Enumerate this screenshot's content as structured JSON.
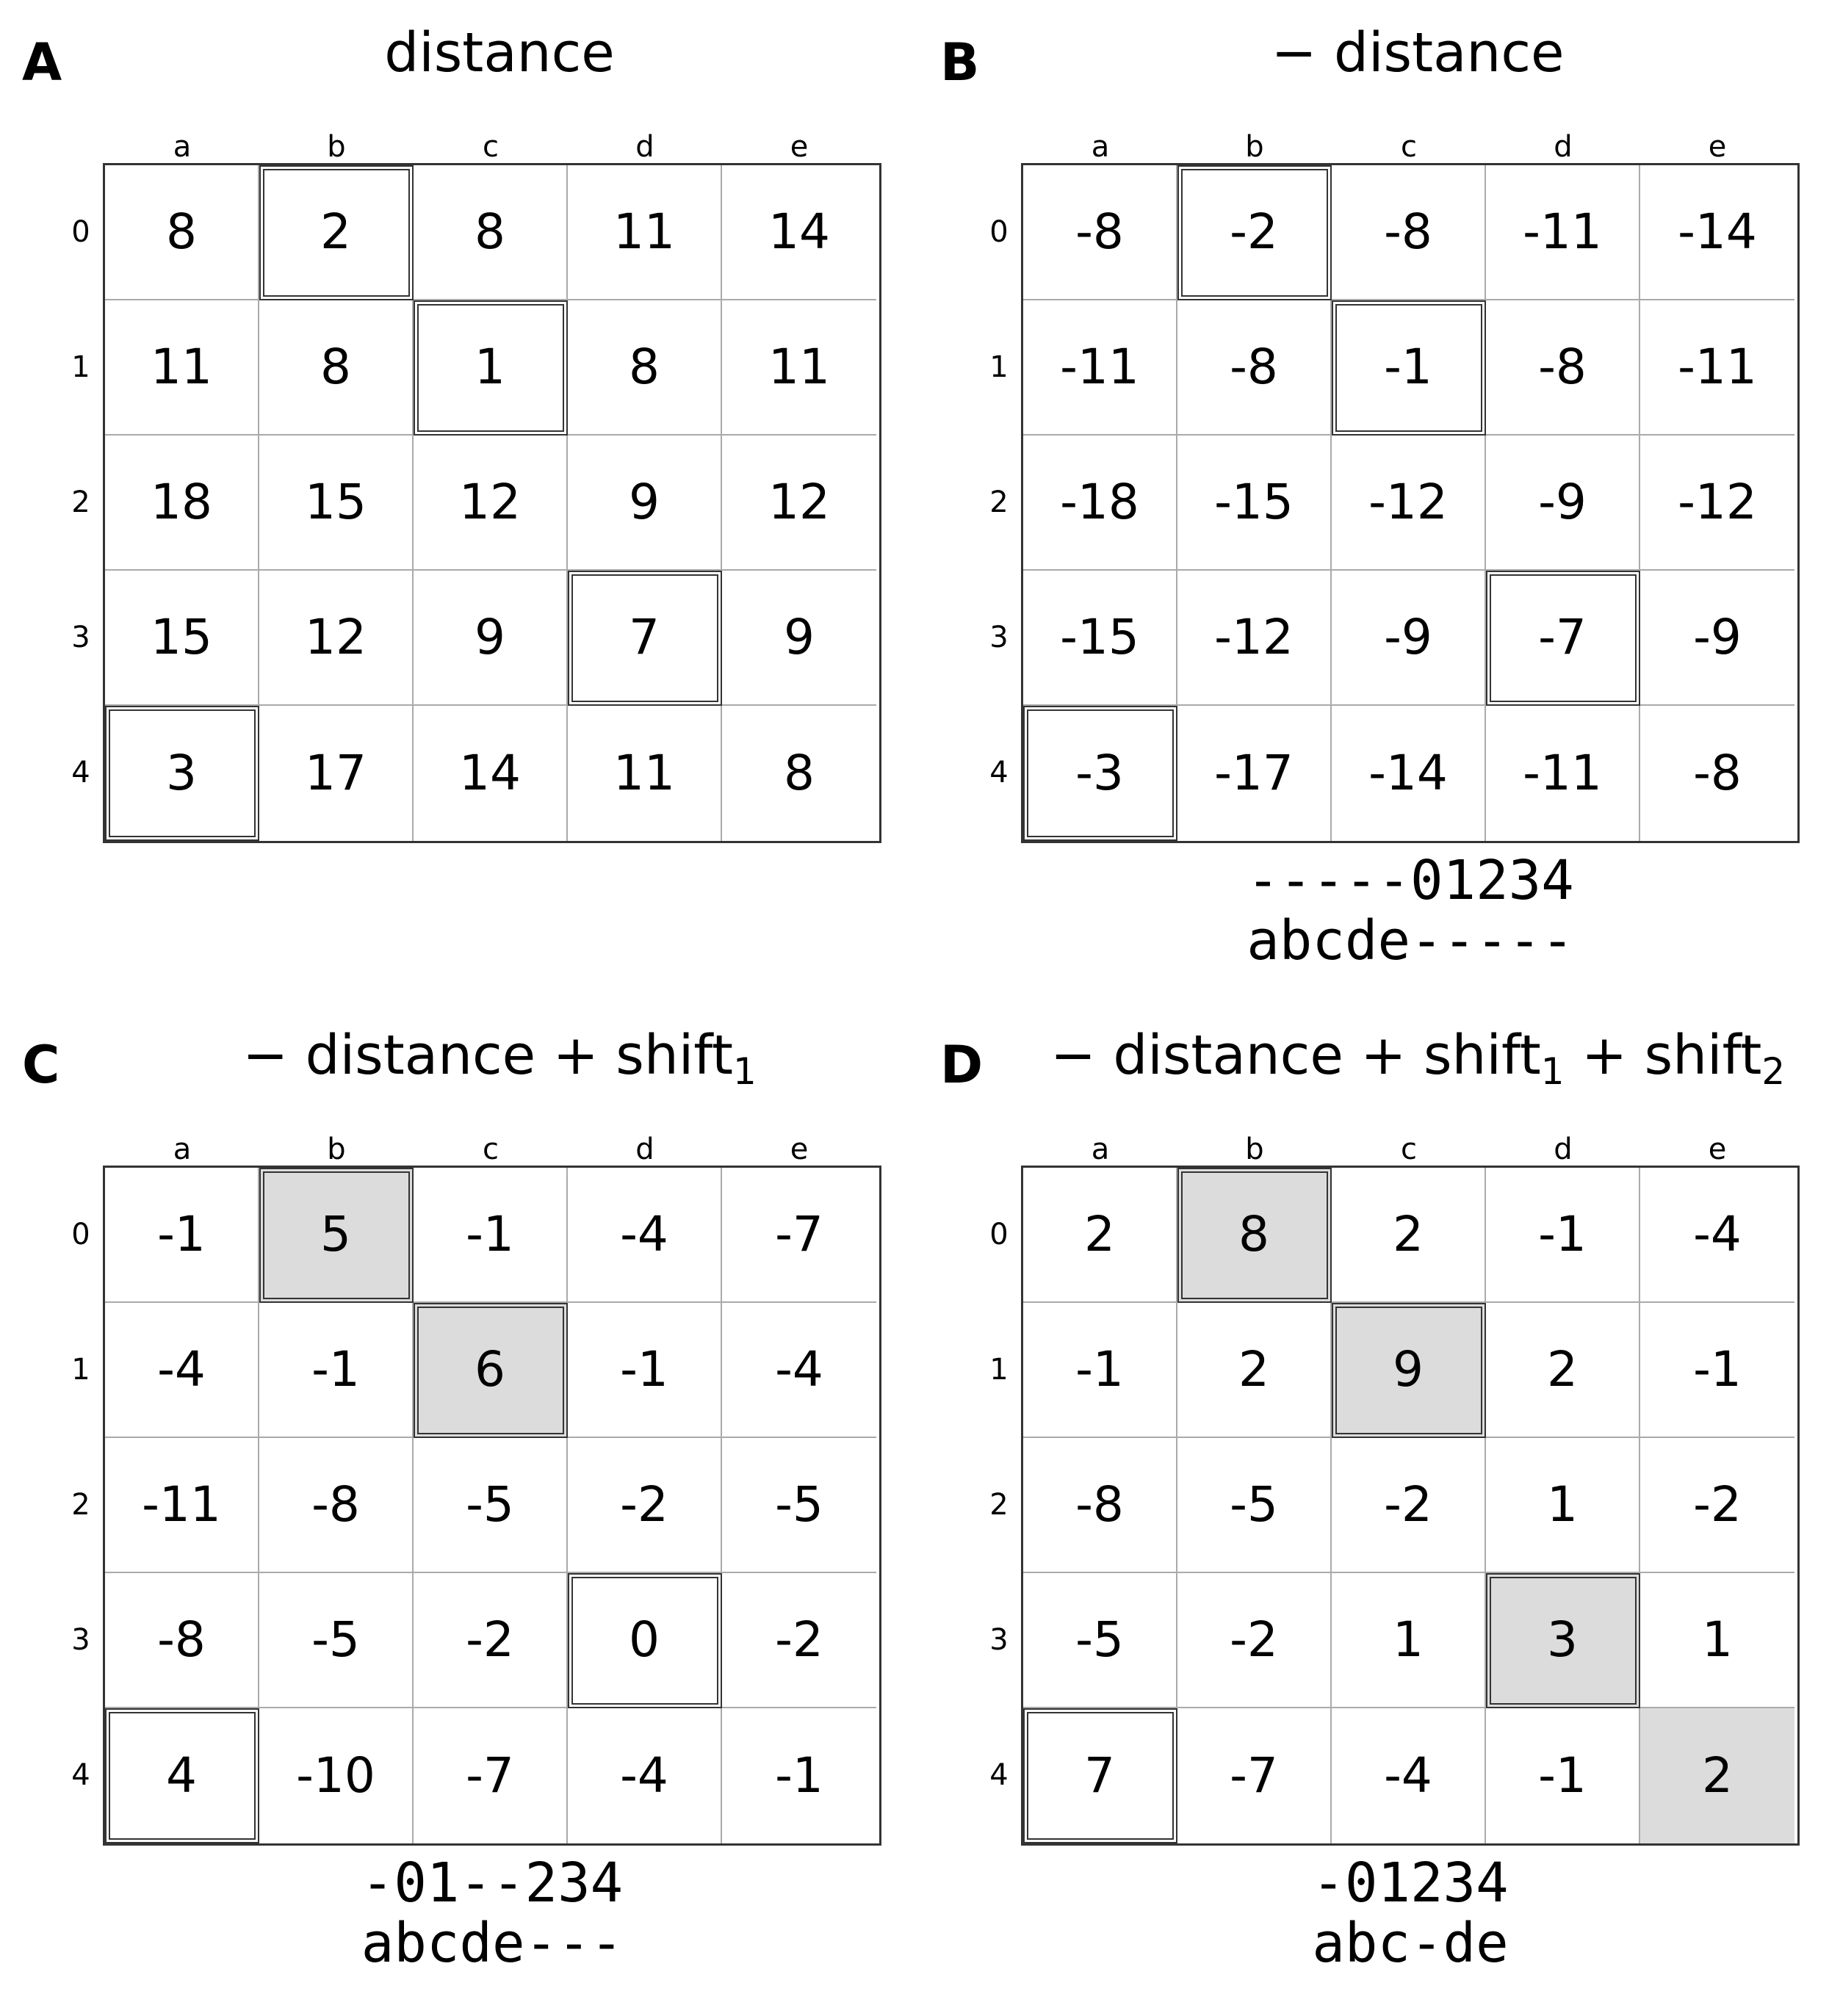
{
  "columns": [
    "a",
    "b",
    "c",
    "d",
    "e"
  ],
  "rows": [
    "0",
    "1",
    "2",
    "3",
    "4"
  ],
  "colors": {
    "filled": "#dcdcdc",
    "border": "#333333",
    "gridline": "#aaaaaa"
  },
  "panels": [
    {
      "letter": "A",
      "title_parts": [
        "distance"
      ],
      "matrix": [
        [
          "8",
          "2",
          "8",
          "11",
          "14"
        ],
        [
          "11",
          "8",
          "1",
          "8",
          "11"
        ],
        [
          "18",
          "15",
          "12",
          "9",
          "12"
        ],
        [
          "15",
          "12",
          "9",
          "7",
          "9"
        ],
        [
          "3",
          "17",
          "14",
          "11",
          "8"
        ]
      ],
      "outlined": [
        [
          0,
          1
        ],
        [
          1,
          2
        ],
        [
          3,
          3
        ],
        [
          4,
          0
        ]
      ],
      "filled": [],
      "alignment": []
    },
    {
      "letter": "B",
      "title_parts": [
        "− distance"
      ],
      "matrix": [
        [
          "-8",
          "-2",
          "-8",
          "-11",
          "-14"
        ],
        [
          "-11",
          "-8",
          "-1",
          "-8",
          "-11"
        ],
        [
          "-18",
          "-15",
          "-12",
          "-9",
          "-12"
        ],
        [
          "-15",
          "-12",
          "-9",
          "-7",
          "-9"
        ],
        [
          "-3",
          "-17",
          "-14",
          "-11",
          "-8"
        ]
      ],
      "outlined": [
        [
          0,
          1
        ],
        [
          1,
          2
        ],
        [
          3,
          3
        ],
        [
          4,
          0
        ]
      ],
      "filled": [],
      "alignment": [
        "-----01234",
        "abcde-----"
      ]
    },
    {
      "letter": "C",
      "title_parts": [
        "− distance + shift",
        "1"
      ],
      "matrix": [
        [
          "-1",
          "5",
          "-1",
          "-4",
          "-7"
        ],
        [
          "-4",
          "-1",
          "6",
          "-1",
          "-4"
        ],
        [
          "-11",
          "-8",
          "-5",
          "-2",
          "-5"
        ],
        [
          "-8",
          "-5",
          "-2",
          "0",
          "-2"
        ],
        [
          "4",
          "-10",
          "-7",
          "-4",
          "-1"
        ]
      ],
      "outlined": [
        [
          0,
          1
        ],
        [
          1,
          2
        ],
        [
          3,
          3
        ],
        [
          4,
          0
        ]
      ],
      "filled": [
        [
          0,
          1
        ],
        [
          1,
          2
        ]
      ],
      "alignment": [
        "-01--234",
        "abcde---"
      ]
    },
    {
      "letter": "D",
      "title_parts": [
        "− distance + shift",
        "1",
        " + shift",
        "2"
      ],
      "matrix": [
        [
          "2",
          "8",
          "2",
          "-1",
          "-4"
        ],
        [
          "-1",
          "2",
          "9",
          "2",
          "-1"
        ],
        [
          "-8",
          "-5",
          "-2",
          "1",
          "-2"
        ],
        [
          "-5",
          "-2",
          "1",
          "3",
          "1"
        ],
        [
          "7",
          "-7",
          "-4",
          "-1",
          "2"
        ]
      ],
      "outlined": [
        [
          0,
          1
        ],
        [
          1,
          2
        ],
        [
          3,
          3
        ],
        [
          4,
          0
        ]
      ],
      "filled": [
        [
          0,
          1
        ],
        [
          1,
          2
        ],
        [
          3,
          3
        ],
        [
          4,
          4
        ]
      ],
      "alignment": [
        "-01234",
        "abc-de"
      ]
    }
  ]
}
